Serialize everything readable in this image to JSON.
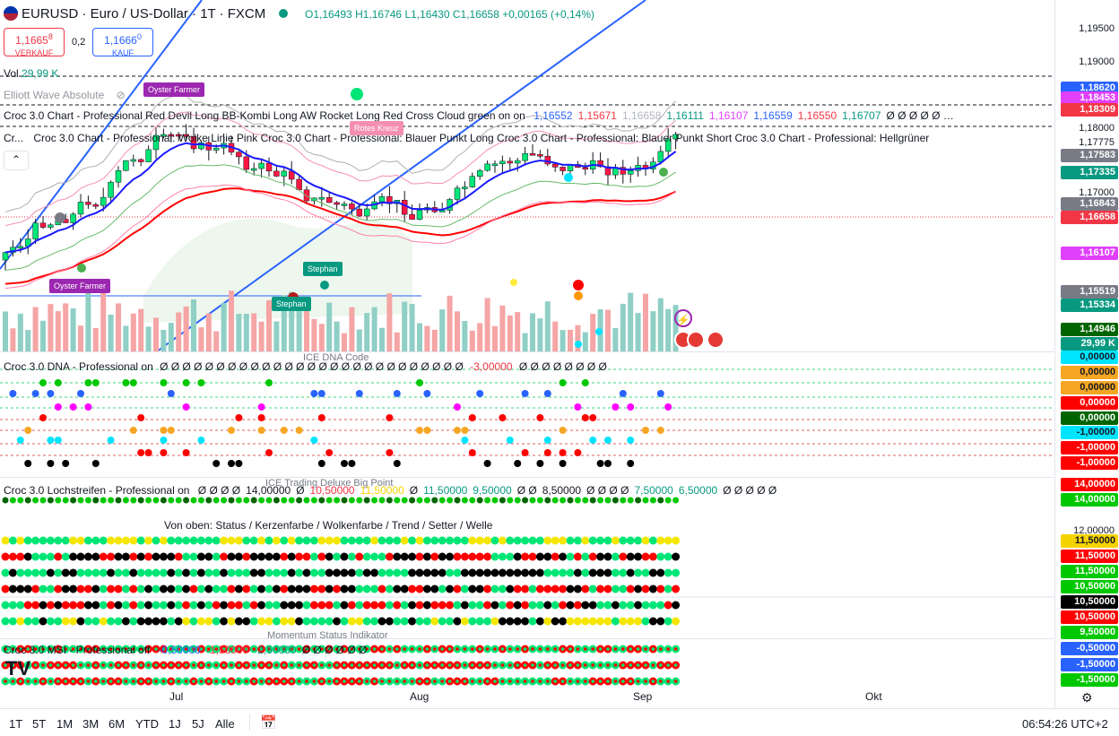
{
  "header": {
    "symbol": "EURUSD · Euro / US-Dollar · 1T · FXCM",
    "ohlc": {
      "o": "O1,16493",
      "h": "H1,16746",
      "l": "L1,16430",
      "c": "C1,16658",
      "chg": "+0,00165 (+0,14%)"
    }
  },
  "trade": {
    "sell_price": "1,1665",
    "sell_price_sup": "8",
    "sell_label": "VERKAUF",
    "spread": "0,2",
    "buy_price": "1,1666",
    "buy_price_sup": "0",
    "buy_label": "KAUF"
  },
  "indicators": {
    "vol": "Vol",
    "vol_val": "29,99 K",
    "elliott": "Elliott Wave Absolute",
    "croc_chart": "Croc 3.0 Chart - Professional Red Devil Long BB-Kombi Long AW Rocket Long Red Cross Cloud green on on",
    "croc_chart_vals": [
      {
        "v": "1,16552",
        "c": "#2962ff"
      },
      {
        "v": "1,15671",
        "c": "#f23645"
      },
      {
        "v": "1,16658",
        "c": "#b2b5be"
      },
      {
        "v": "1,16111",
        "c": "#089981"
      },
      {
        "v": "1,16107",
        "c": "#e040fb"
      },
      {
        "v": "1,16559",
        "c": "#2962ff"
      },
      {
        "v": "1,16550",
        "c": "#f23645"
      },
      {
        "v": "1,16707",
        "c": "#089981"
      },
      {
        "v": "Ø Ø Ø Ø Ø …",
        "c": "#131722"
      }
    ],
    "croc_line2_prefix": "Cr...",
    "croc_line2": "Croc 3.0 Chart - Professional: Wolke Linie Pink Croc 3.0 Chart - Professional: Blauer Punkt Long Croc 3.0 Chart - Professional: Blauer Punkt Short Croc 3.0 Chart - Professional: Hellgrüner",
    "dna": "Croc 3.0 DNA - Professional on",
    "dna_vals": "Ø Ø Ø Ø Ø Ø Ø Ø Ø Ø Ø Ø Ø Ø Ø Ø Ø Ø Ø Ø Ø Ø Ø Ø Ø Ø Ø",
    "dna_neg": "-3,00000",
    "dna_vals2": "Ø Ø Ø Ø Ø Ø Ø Ø",
    "ice_dna": "ICE DNA Code",
    "lochstreifen": "Croc 3.0 Lochstreifen - Professional on",
    "loch_vals": [
      {
        "v": "Ø Ø Ø Ø",
        "c": "#131722"
      },
      {
        "v": "14,00000",
        "c": "#131722"
      },
      {
        "v": "Ø",
        "c": "#131722"
      },
      {
        "v": "10,50000",
        "c": "#f23645"
      },
      {
        "v": "11,50000",
        "c": "#f5d300"
      },
      {
        "v": "Ø",
        "c": "#131722"
      },
      {
        "v": "11,50000",
        "c": "#089981"
      },
      {
        "v": "9,50000",
        "c": "#089981"
      },
      {
        "v": "Ø Ø",
        "c": "#131722"
      },
      {
        "v": "8,50000",
        "c": "#131722"
      },
      {
        "v": "Ø Ø Ø Ø",
        "c": "#131722"
      },
      {
        "v": "7,50000",
        "c": "#089981"
      },
      {
        "v": "6,50000",
        "c": "#089981"
      },
      {
        "v": "Ø Ø Ø Ø Ø",
        "c": "#131722"
      }
    ],
    "ice_trading": "ICE Trading Deluxe Big Point",
    "von_oben": "Von oben: Status / Kerzenfarbe / Wolkenfarbe / Trend / Setter / Welle",
    "momentum": "Momentum Status Indikator",
    "msi": "Croc 3.0 MSI - Professional off",
    "msi_vals": [
      {
        "v": "-0,50000",
        "c": "#2962ff"
      },
      {
        "v": "-1,50000",
        "c": "#f23645"
      },
      {
        "v": "-2,50000",
        "c": "#089981"
      },
      {
        "v": "Ø Ø Ø Ø Ø Ø",
        "c": "#131722"
      }
    ]
  },
  "badges": {
    "oyster1": "Oyster Farmer",
    "oyster2": "Oyster Farmer",
    "stephan1": "Stephan",
    "stephan2": "Stephan",
    "rotes": "Rotes Kreuz"
  },
  "price_axis": {
    "ticks": [
      "1,19500",
      "1,19000",
      "1,18000",
      "1,17775",
      "1,17000",
      "1,14946"
    ],
    "labels": [
      {
        "v": "1,18620",
        "bg": "#2962ff"
      },
      {
        "v": "1,18453",
        "bg": "#e040fb"
      },
      {
        "v": "1,18309",
        "bg": "#f23645"
      },
      {
        "v": "1,17583",
        "bg": "#787b86"
      },
      {
        "v": "1,17335",
        "bg": "#089981"
      },
      {
        "v": "1,16843",
        "bg": "#787b86"
      },
      {
        "v": "1,16658",
        "bg": "#f23645"
      },
      {
        "v": "1,16107",
        "bg": "#e040fb"
      },
      {
        "v": "1,15519",
        "bg": "#787b86"
      },
      {
        "v": "1,15334",
        "bg": "#089981"
      },
      {
        "v": "1,14946",
        "bg": "#006400"
      },
      {
        "v": "29,99 K",
        "bg": "#089981"
      }
    ],
    "dna_labels": [
      {
        "v": "0,00000",
        "bg": "#00e5ff"
      },
      {
        "v": "0,00000",
        "bg": "#f5a623"
      },
      {
        "v": "0,00000",
        "bg": "#f5a623"
      },
      {
        "v": "0,00000",
        "bg": "#ff0000"
      },
      {
        "v": "0,00000",
        "bg": "#006400"
      },
      {
        "v": "-1,00000",
        "bg": "#00e5ff"
      },
      {
        "v": "-1,00000",
        "bg": "#ff0000"
      },
      {
        "v": "-1,00000",
        "bg": "#ff0000"
      }
    ],
    "loch_labels": [
      {
        "v": "14,00000",
        "bg": "#ff0000"
      },
      {
        "v": "14,00000",
        "bg": "#00c800"
      }
    ],
    "status_tick": "12,00000",
    "status_labels": [
      {
        "v": "11,50000",
        "bg": "#f5d300",
        "fg": "#131722"
      },
      {
        "v": "11,50000",
        "bg": "#ff0000",
        "fg": "#fff"
      },
      {
        "v": "11,50000",
        "bg": "#00c800",
        "fg": "#fff"
      },
      {
        "v": "10,50000",
        "bg": "#00c800",
        "fg": "#fff"
      },
      {
        "v": "10,50000",
        "bg": "#000000",
        "fg": "#fff"
      },
      {
        "v": "10,50000",
        "bg": "#ff0000",
        "fg": "#fff"
      },
      {
        "v": "9,50000",
        "bg": "#00c800",
        "fg": "#fff"
      }
    ],
    "msi_labels": [
      {
        "v": "-0,50000",
        "bg": "#2962ff"
      },
      {
        "v": "-1,50000",
        "bg": "#2962ff"
      },
      {
        "v": "-1,50000",
        "bg": "#00c800"
      }
    ]
  },
  "x_axis": {
    "labels": [
      "Jul",
      "Aug",
      "Sep",
      "Okt"
    ]
  },
  "timebar": {
    "ranges": [
      "1T",
      "5T",
      "1M",
      "3M",
      "6M",
      "YTD",
      "1J",
      "5J",
      "Alle"
    ],
    "clock": "06:54:26 UTC+2"
  }
}
